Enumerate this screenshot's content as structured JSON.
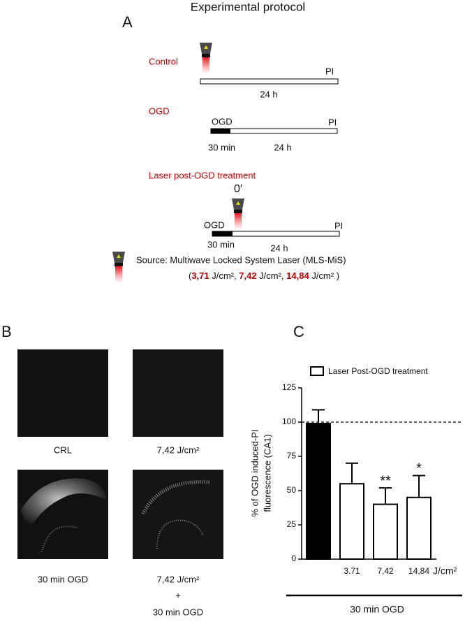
{
  "panel_a": {
    "title": "Experimental protocol",
    "letter": "A",
    "control": {
      "label": "Control",
      "end": "PI",
      "duration": "24 h"
    },
    "ogd": {
      "label": "OGD",
      "start": "OGD",
      "end": "PI",
      "first": "30 min",
      "duration": "24 h"
    },
    "laser": {
      "label": "Laser post-OGD treatment",
      "time": "0′",
      "start": "OGD",
      "end": "PI",
      "first": "30 min",
      "duration": "24 h"
    },
    "source": {
      "line1": "Source: Multiwave Locked System Laser (MLS-MiS)",
      "line2": [
        {
          "text": "(",
          "bold": false
        },
        {
          "text": "3,71",
          "bold": true
        },
        {
          "text": " J/cm², ",
          "bold": false
        },
        {
          "text": "7,42",
          "bold": true
        },
        {
          "text": " J/cm², ",
          "bold": false
        },
        {
          "text": "14,84",
          "bold": true
        },
        {
          "text": " J/cm² )",
          "bold": false
        }
      ]
    }
  },
  "panel_b": {
    "letter": "B",
    "labels": [
      "CRL",
      "7,42 J/cm²",
      "30 min OGD",
      "7,42 J/cm²",
      "+",
      "30 min OGD"
    ]
  },
  "chart_data": {
    "type": "bar",
    "letter": "C",
    "legend": "Laser Post-OGD treatment",
    "y_label": [
      "% of OGD induced-PI",
      "fluorescence (CA1)"
    ],
    "categories": [
      null,
      "3.71",
      "7,42",
      "14,84"
    ],
    "unit_label": "J/cm²",
    "group_label": "30 min OGD",
    "values": [
      99,
      55,
      40,
      45
    ],
    "errors": [
      10,
      15,
      12,
      16
    ],
    "value_annotations": [
      null,
      null,
      "**",
      "*"
    ],
    "colors": [
      "#000000",
      "#ffffff",
      "#ffffff",
      "#ffffff"
    ],
    "reference_line": 100,
    "ylim": [
      0,
      125
    ],
    "yticks": [
      0,
      25,
      50,
      75,
      100,
      125
    ]
  }
}
